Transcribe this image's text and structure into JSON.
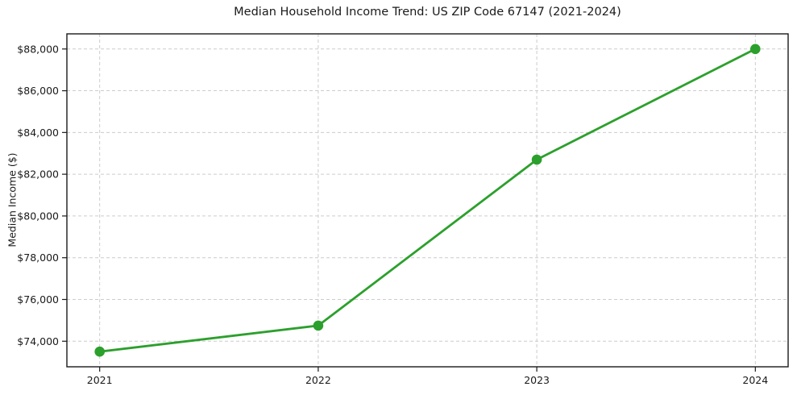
{
  "chart_data": {
    "type": "line",
    "title": "Median Household Income Trend: US ZIP Code 67147 (2021-2024)",
    "xlabel": "",
    "ylabel": "Median Income ($)",
    "categories": [
      "2021",
      "2022",
      "2023",
      "2024"
    ],
    "series": [
      {
        "name": "Median Household Income",
        "values": [
          73500,
          74750,
          82700,
          88000
        ]
      }
    ],
    "yticks": [
      74000,
      76000,
      78000,
      80000,
      82000,
      84000,
      86000,
      88000
    ],
    "ytick_labels": [
      "$74,000",
      "$76,000",
      "$78,000",
      "$80,000",
      "$82,000",
      "$84,000",
      "$86,000",
      "$88,000"
    ],
    "ylim": [
      72775,
      88725
    ],
    "grid": true,
    "grid_style": "dashed",
    "legend": "none",
    "marker": "circle",
    "colors": {
      "line": "#2ca02c",
      "marker": "#2ca02c",
      "grid": "#cccccc",
      "axis": "#1a1a1a",
      "text": "#1a1a1a",
      "background": "#ffffff"
    }
  }
}
